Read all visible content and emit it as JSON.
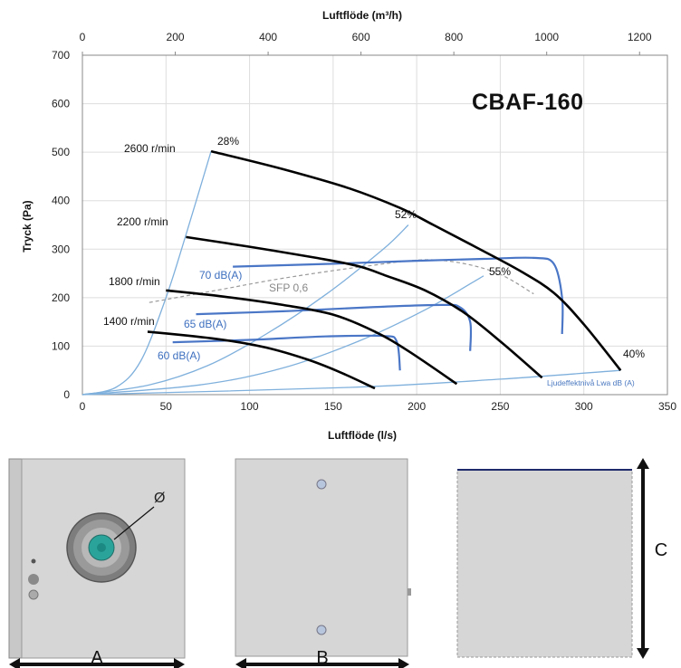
{
  "model": "CBAF-160",
  "chart_data": {
    "type": "line",
    "xlabel": "Luftflöde (l/s)",
    "ylabel": "Tryck (Pa)",
    "x2label": "Luftflöde (m³/h)",
    "xlim": [
      0,
      350
    ],
    "ylim": [
      0,
      700
    ],
    "x2lim": [
      0,
      1260
    ],
    "xticks": [
      0,
      50,
      100,
      150,
      200,
      250,
      300,
      350
    ],
    "yticks": [
      0,
      100,
      200,
      300,
      400,
      500,
      600,
      700
    ],
    "x2ticks": [
      0,
      200,
      400,
      600,
      800,
      1000,
      1200
    ],
    "grid": true,
    "fan_curves": [
      {
        "name": "2600 r/min",
        "points": [
          [
            77,
            502
          ],
          [
            120,
            465
          ],
          [
            160,
            425
          ],
          [
            190,
            385
          ],
          [
            210,
            350
          ],
          [
            235,
            305
          ],
          [
            262,
            255
          ],
          [
            282,
            210
          ],
          [
            300,
            145
          ],
          [
            322,
            50
          ]
        ]
      },
      {
        "name": "2200 r/min",
        "points": [
          [
            62,
            325
          ],
          [
            100,
            305
          ],
          [
            140,
            282
          ],
          [
            165,
            265
          ],
          [
            182,
            245
          ],
          [
            205,
            215
          ],
          [
            228,
            170
          ],
          [
            250,
            110
          ],
          [
            275,
            35
          ]
        ]
      },
      {
        "name": "1800 r/min",
        "points": [
          [
            50,
            215
          ],
          [
            85,
            202
          ],
          [
            120,
            185
          ],
          [
            150,
            165
          ],
          [
            175,
            130
          ],
          [
            195,
            90
          ],
          [
            224,
            22
          ]
        ]
      },
      {
        "name": "1400 r/min",
        "points": [
          [
            39,
            130
          ],
          [
            80,
            115
          ],
          [
            110,
            97
          ],
          [
            135,
            72
          ],
          [
            155,
            45
          ],
          [
            175,
            13
          ]
        ]
      }
    ],
    "efficiency_lines": [
      {
        "name": "28%",
        "points": [
          [
            0,
            0
          ],
          [
            20,
            15
          ],
          [
            35,
            70
          ],
          [
            50,
            200
          ],
          [
            62,
            330
          ],
          [
            77,
            502
          ]
        ]
      },
      {
        "name": "52%",
        "points": [
          [
            0,
            0
          ],
          [
            40,
            20
          ],
          [
            75,
            60
          ],
          [
            110,
            125
          ],
          [
            145,
            205
          ],
          [
            180,
            300
          ],
          [
            195,
            350
          ]
        ]
      },
      {
        "name": "55%",
        "points": [
          [
            0,
            0
          ],
          [
            70,
            20
          ],
          [
            120,
            55
          ],
          [
            165,
            110
          ],
          [
            205,
            175
          ],
          [
            240,
            245
          ]
        ]
      },
      {
        "name": "40%",
        "points": [
          [
            0,
            0
          ],
          [
            160,
            15
          ],
          [
            250,
            32
          ],
          [
            322,
            50
          ]
        ]
      }
    ],
    "sound_curves": [
      {
        "name": "70 dB(A)",
        "points": [
          [
            90,
            264
          ],
          [
            150,
            270
          ],
          [
            200,
            276
          ],
          [
            240,
            280
          ],
          [
            270,
            282
          ],
          [
            282,
            270
          ],
          [
            287,
            200
          ],
          [
            287,
            125
          ]
        ]
      },
      {
        "name": "65 dB(A)",
        "points": [
          [
            68,
            166
          ],
          [
            120,
            172
          ],
          [
            170,
            180
          ],
          [
            215,
            185
          ],
          [
            226,
            180
          ],
          [
            232,
            150
          ],
          [
            232,
            90
          ]
        ]
      },
      {
        "name": "60 dB(A)",
        "points": [
          [
            54,
            108
          ],
          [
            100,
            113
          ],
          [
            145,
            120
          ],
          [
            180,
            121
          ],
          [
            188,
            110
          ],
          [
            190,
            50
          ]
        ]
      }
    ],
    "sfp_curve": {
      "name": "SFP 0,6",
      "points": [
        [
          40,
          190
        ],
        [
          80,
          215
        ],
        [
          120,
          240
        ],
        [
          170,
          265
        ],
        [
          210,
          278
        ],
        [
          245,
          255
        ],
        [
          270,
          208
        ]
      ]
    },
    "annotations": {
      "rpm": [
        "2600 r/min",
        "2200 r/min",
        "1800 r/min",
        "1400 r/min"
      ],
      "efficiency": [
        "28%",
        "52%",
        "55%",
        "40%"
      ],
      "sound": [
        "70 dB(A)",
        "65 dB(A)",
        "60 dB(A)"
      ],
      "sfp": "SFP 0,6",
      "lwa": "Ljudeffektnivå Lwa dB (A)"
    }
  },
  "colors": {
    "fan_curve": "#000000",
    "efficiency_line": "#7fb0dc",
    "sound_curve": "#4a76c6",
    "sfp_curve": "#9a9a9a",
    "grid": "#dddddd",
    "panel": "#d8d8d8",
    "fan_teal": "#2aa49b"
  },
  "dimensions": {
    "diameter": "Ø",
    "width": "A",
    "depth": "B",
    "height": "C"
  }
}
